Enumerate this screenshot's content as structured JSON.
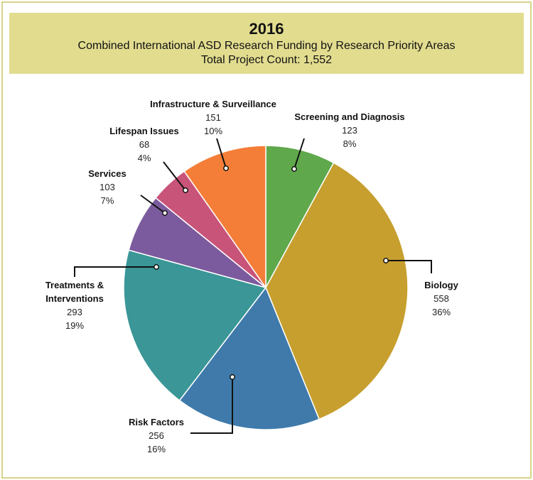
{
  "chart_data": {
    "type": "pie",
    "title": "2016",
    "subtitle": "Combined International ASD Research Funding by Research Priority Areas",
    "total_label": "Total Project Count: 1,552",
    "categories": [
      "Screening and Diagnosis",
      "Biology",
      "Risk Factors",
      "Treatments & Interventions",
      "Services",
      "Lifespan Issues",
      "Infrastructure & Surveillance"
    ],
    "values": [
      123,
      558,
      256,
      293,
      103,
      68,
      151
    ],
    "percent_labels": [
      "8%",
      "36%",
      "16%",
      "19%",
      "7%",
      "4%",
      "10%"
    ],
    "colors": [
      "#5fa84b",
      "#c79f2e",
      "#3f7aab",
      "#3a9697",
      "#7b5b9d",
      "#c8547a",
      "#f47e38"
    ]
  }
}
